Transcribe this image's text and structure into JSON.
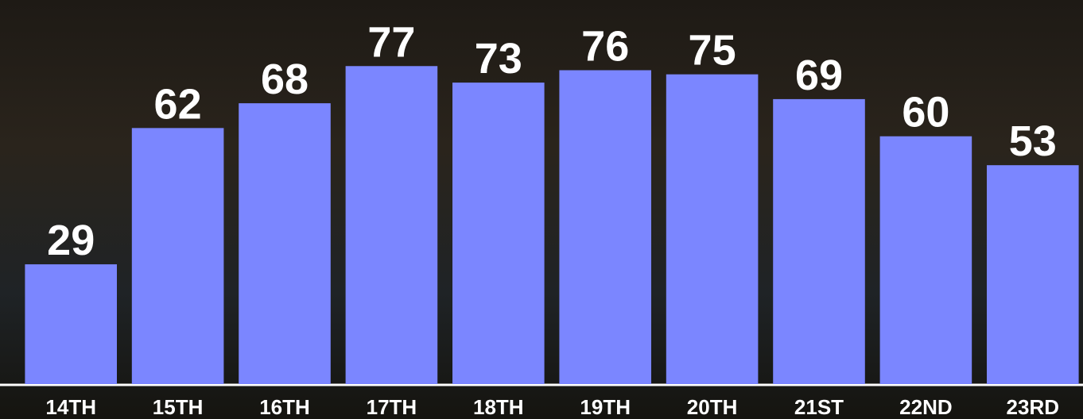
{
  "chart_data": {
    "type": "bar",
    "categories": [
      "14TH",
      "15TH",
      "16TH",
      "17TH",
      "18TH",
      "19TH",
      "20TH",
      "21ST",
      "22ND",
      "23RD"
    ],
    "values": [
      29,
      62,
      68,
      77,
      73,
      76,
      75,
      69,
      60,
      53
    ],
    "color": "#7b86ff",
    "ylim": [
      0,
      93
    ]
  }
}
